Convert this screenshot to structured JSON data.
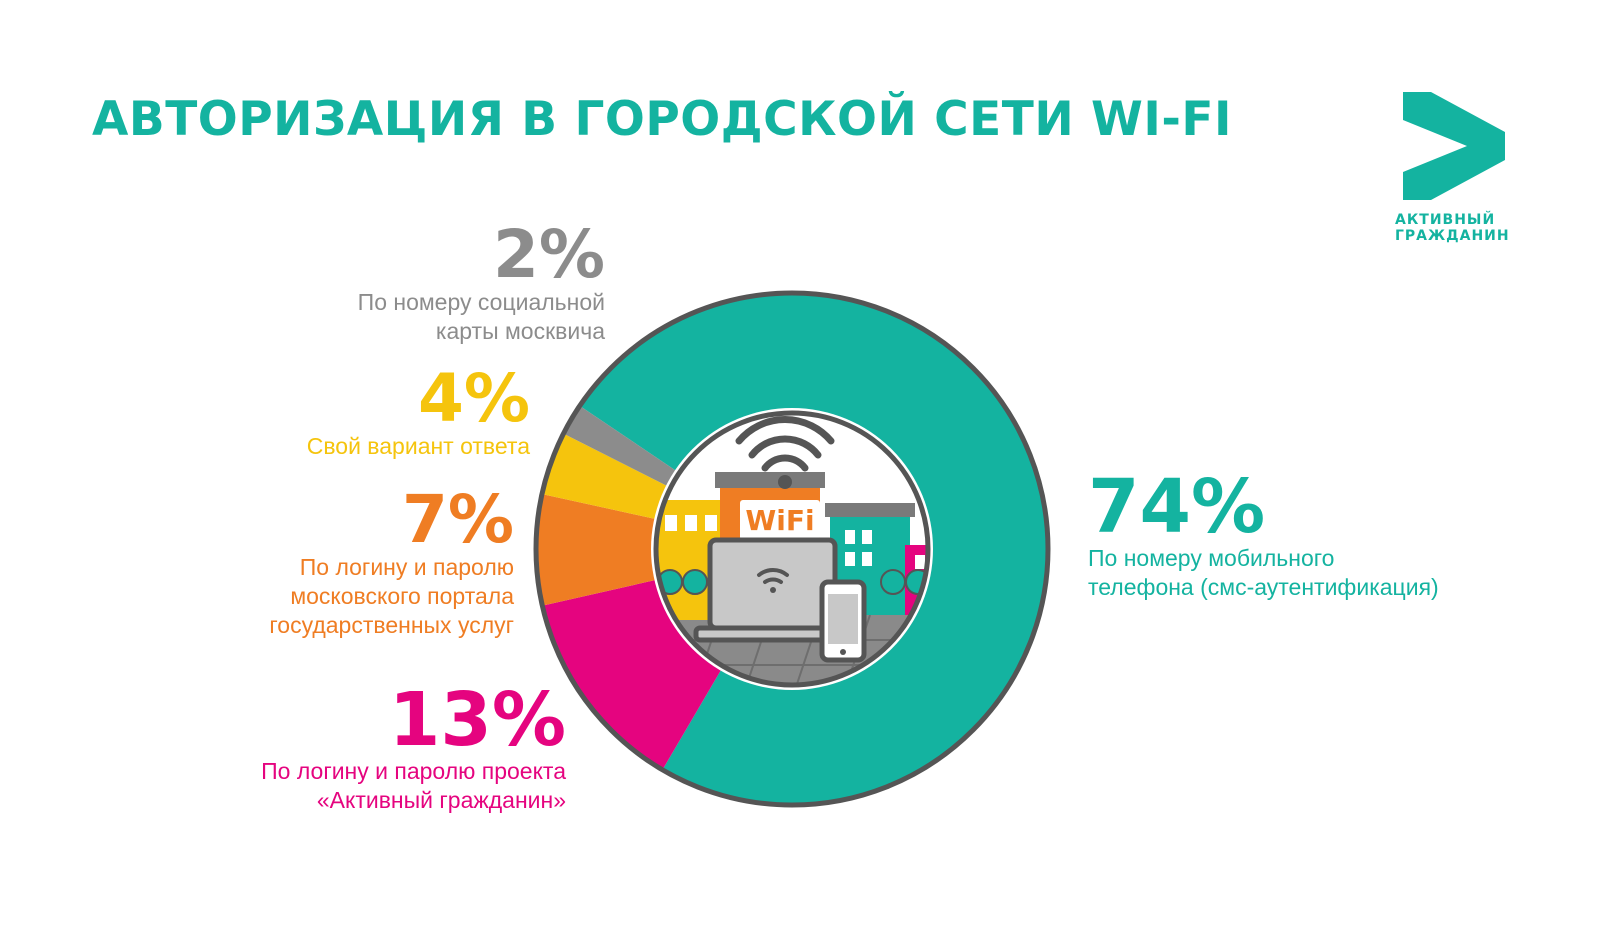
{
  "title": "АВТОРИЗАЦИЯ В ГОРОДСКОЙ СЕТИ WI-FI",
  "logo": {
    "line1": "АКТИВНЫЙ",
    "line2": "ГРАЖДАНИН"
  },
  "illustration": {
    "sign_text": "WiFi"
  },
  "colors": {
    "teal": "#14b3a0",
    "magenta": "#e5047f",
    "orange": "#ef7d23",
    "yellow": "#f5c40d",
    "gray": "#8c8c8c"
  },
  "chart_data": {
    "type": "pie",
    "title": "АВТОРИЗАЦИЯ В ГОРОДСКОЙ СЕТИ WI-FI",
    "categories": [
      "По номеру мобильного телефона (смс-аутентификация)",
      "По логину и паролю проекта «Активный гражданин»",
      "По логину и паролю московского портала государственных услуг",
      "Свой вариант ответа",
      "По номеру социальной карты москвича"
    ],
    "values": [
      74,
      13,
      7,
      4,
      2
    ],
    "colors": [
      "#14b3a0",
      "#e5047f",
      "#ef7d23",
      "#f5c40d",
      "#8c8c8c"
    ],
    "labels": {
      "mobile": {
        "pct": "74%",
        "lines": [
          "По номеру мобильного",
          "телефона (смс-аутентификация)"
        ]
      },
      "ag": {
        "pct": "13%",
        "lines": [
          "По логину и паролю проекта",
          "«Активный гражданин»"
        ]
      },
      "gos": {
        "pct": "7%",
        "lines": [
          "По логину и паролю",
          "московского портала",
          "государственных услуг"
        ]
      },
      "own": {
        "pct": "4%",
        "lines": [
          "Свой вариант ответа"
        ]
      },
      "social": {
        "pct": "2%",
        "lines": [
          "По номеру социальной",
          "карты москвича"
        ]
      }
    }
  }
}
